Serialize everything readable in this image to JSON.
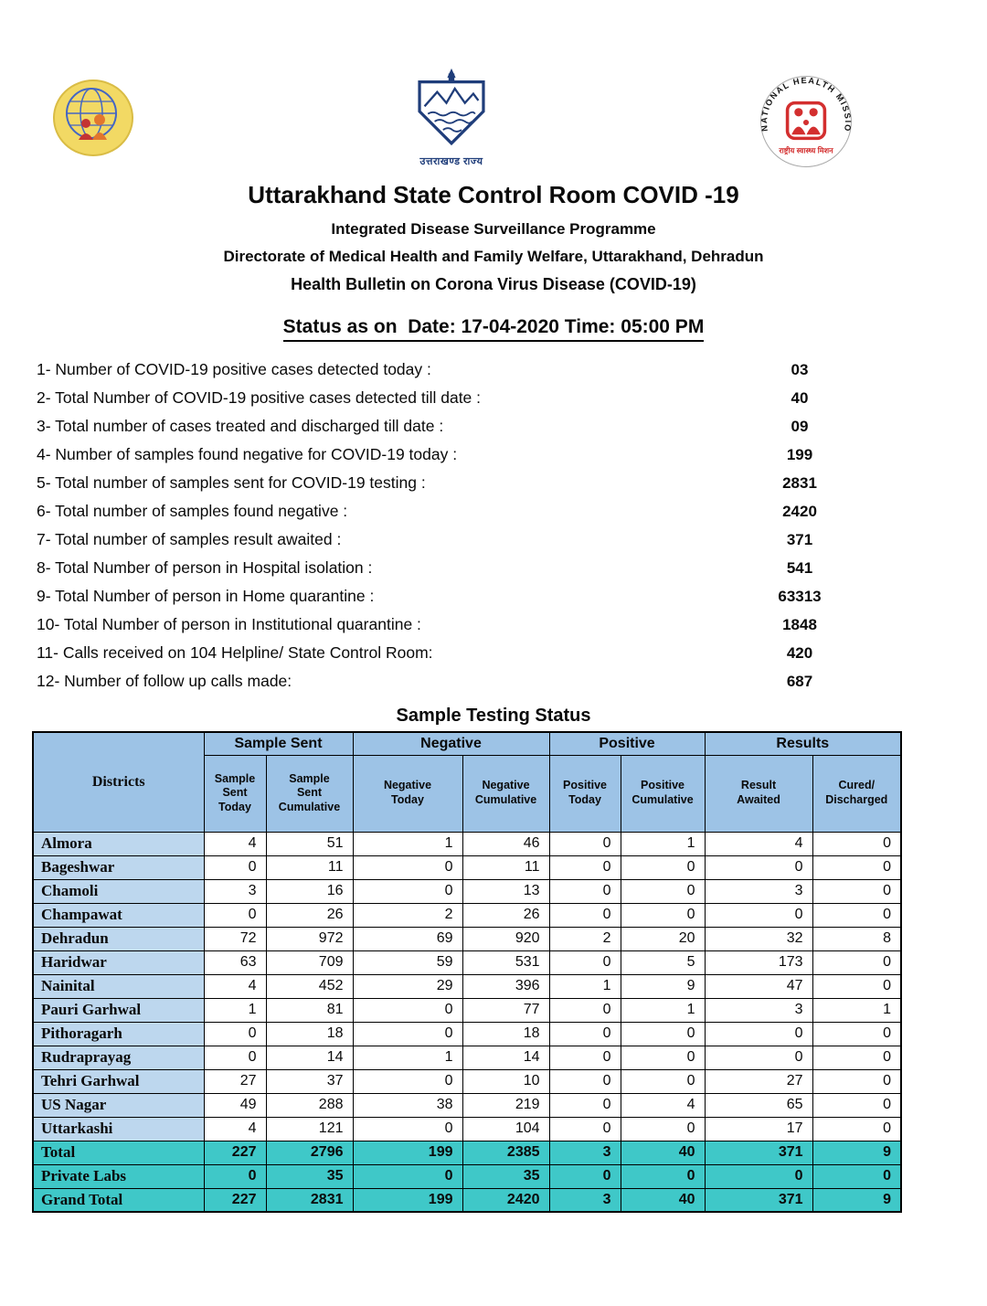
{
  "colors": {
    "header_blue": "#9DC3E6",
    "district_blue": "#BDD7EE",
    "total_teal": "#3FC8C8",
    "emblem_blue": "#1F3D7A",
    "nhm_red": "#D32F2F"
  },
  "logos": {
    "center_caption": "उत्तराखण्ड राज्य",
    "right_arc_text": "NATIONAL HEALTH MISSION",
    "right_caption": "राष्ट्रीय स्वास्थ्य मिशन"
  },
  "header": {
    "title": "Uttarakhand State Control Room COVID -19",
    "subtitle1": "Integrated Disease Surveillance Programme",
    "subtitle2": "Directorate of Medical Health and Family Welfare, Uttarakhand, Dehradun",
    "subtitle3": "Health Bulletin on Corona Virus Disease (COVID-19)",
    "status_line": "Status as on  Date: 17-04-2020 Time: 05:00 PM"
  },
  "stats": [
    {
      "label": "1- Number of COVID-19 positive cases detected today :",
      "value": "03"
    },
    {
      "label": "2- Total Number of COVID-19 positive cases detected till date :",
      "value": "40"
    },
    {
      "label": "3- Total number of cases treated and discharged till date :",
      "value": "09"
    },
    {
      "label": "4- Number of samples found negative for COVID-19 today :",
      "value": "199"
    },
    {
      "label": "5- Total number of samples sent for COVID-19 testing :",
      "value": "2831"
    },
    {
      "label": "6- Total number of samples found negative :",
      "value": "2420"
    },
    {
      "label": "7- Total number of samples result awaited :",
      "value": "371"
    },
    {
      "label": "8- Total Number of person in Hospital isolation :",
      "value": "541"
    },
    {
      "label": "9- Total Number of person in Home quarantine :",
      "value": "63313"
    },
    {
      "label": "10- Total Number of person in Institutional quarantine :",
      "value": "1848"
    },
    {
      "label": "11- Calls received on 104 Helpline/ State Control Room:",
      "value": "420"
    },
    {
      "label": "12- Number of follow up calls made:",
      "value": "687"
    }
  ],
  "table": {
    "title": "Sample Testing Status",
    "corner_header": "Districts",
    "groups": [
      {
        "label": "Sample Sent",
        "span": 2
      },
      {
        "label": "Negative",
        "span": 2
      },
      {
        "label": "Positive",
        "span": 2
      },
      {
        "label": "Results",
        "span": 2
      }
    ],
    "columns": [
      "Sample\nSent\nToday",
      "Sample\nSent\nCumulative",
      "Negative\nToday",
      "Negative\nCumulative",
      "Positive\nToday",
      "Positive\nCumulative",
      "Result\nAwaited",
      "Cured/\nDischarged"
    ],
    "rows": [
      {
        "district": "Almora",
        "values": [
          4,
          51,
          1,
          46,
          0,
          1,
          4,
          0
        ]
      },
      {
        "district": "Bageshwar",
        "values": [
          0,
          11,
          0,
          11,
          0,
          0,
          0,
          0
        ]
      },
      {
        "district": "Chamoli",
        "values": [
          3,
          16,
          0,
          13,
          0,
          0,
          3,
          0
        ]
      },
      {
        "district": "Champawat",
        "values": [
          0,
          26,
          2,
          26,
          0,
          0,
          0,
          0
        ]
      },
      {
        "district": "Dehradun",
        "values": [
          72,
          972,
          69,
          920,
          2,
          20,
          32,
          8
        ]
      },
      {
        "district": "Haridwar",
        "values": [
          63,
          709,
          59,
          531,
          0,
          5,
          173,
          0
        ]
      },
      {
        "district": "Nainital",
        "values": [
          4,
          452,
          29,
          396,
          1,
          9,
          47,
          0
        ]
      },
      {
        "district": "Pauri Garhwal",
        "values": [
          1,
          81,
          0,
          77,
          0,
          1,
          3,
          1
        ]
      },
      {
        "district": "Pithoragarh",
        "values": [
          0,
          18,
          0,
          18,
          0,
          0,
          0,
          0
        ]
      },
      {
        "district": "Rudraprayag",
        "values": [
          0,
          14,
          1,
          14,
          0,
          0,
          0,
          0
        ]
      },
      {
        "district": "Tehri Garhwal",
        "values": [
          27,
          37,
          0,
          10,
          0,
          0,
          27,
          0
        ]
      },
      {
        "district": "US Nagar",
        "values": [
          49,
          288,
          38,
          219,
          0,
          4,
          65,
          0
        ]
      },
      {
        "district": "Uttarkashi",
        "values": [
          4,
          121,
          0,
          104,
          0,
          0,
          17,
          0
        ]
      }
    ],
    "total_rows": [
      {
        "district": "Total",
        "values": [
          227,
          2796,
          199,
          2385,
          3,
          40,
          371,
          9
        ]
      },
      {
        "district": "Private Labs",
        "values": [
          0,
          35,
          0,
          35,
          0,
          0,
          0,
          0
        ]
      },
      {
        "district": "Grand Total",
        "values": [
          227,
          2831,
          199,
          2420,
          3,
          40,
          371,
          9
        ]
      }
    ]
  }
}
